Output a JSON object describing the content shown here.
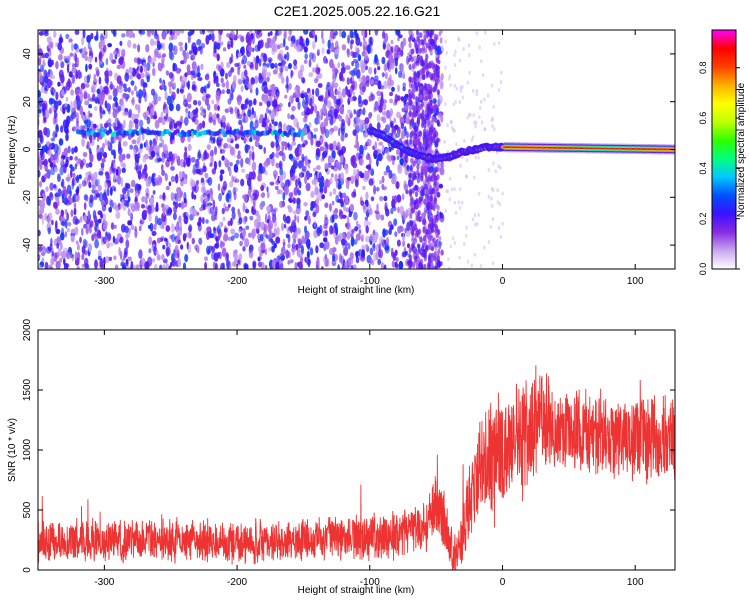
{
  "title": "C2E1.2025.005.22.16.G21",
  "colors": {
    "snr_line": "#ee3333",
    "axis": "#000000",
    "background": "#ffffff",
    "colormap": [
      "#ffffff",
      "#c8a8f0",
      "#8a2be2",
      "#3a10ff",
      "#0050ff",
      "#00c8ff",
      "#00ff80",
      "#30ff00",
      "#c0ff00",
      "#ffff00",
      "#ffb000",
      "#ff4000",
      "#ff0000",
      "#ff00ff"
    ]
  },
  "chart_data": [
    {
      "type": "heatmap",
      "xlabel": "Height of straight line (km)",
      "ylabel": "Frequency (Hz)",
      "xlim": [
        -350,
        130
      ],
      "ylim": [
        -50,
        50
      ],
      "xticks": [
        -300,
        -200,
        -100,
        0,
        100
      ],
      "yticks": [
        -40,
        -20,
        0,
        20,
        40
      ],
      "colorbar": {
        "label": "Normalized spectral amplitude",
        "range": [
          0,
          0.95
        ],
        "ticks": [
          0.0,
          0.2,
          0.4,
          0.6,
          0.8
        ]
      },
      "features": [
        {
          "name": "noise_region",
          "x_range": [
            -350,
            -45
          ],
          "y_range": [
            -50,
            50
          ],
          "level": 0.1
        },
        {
          "name": "dense_band",
          "x_range": [
            -70,
            -48
          ],
          "y_range": [
            -50,
            50
          ],
          "level": 0.12
        },
        {
          "name": "weak_tone",
          "x_range": [
            -320,
            -150
          ],
          "y": 7,
          "level": 0.2
        },
        {
          "name": "signal_track",
          "points": [
            [
              -100,
              8
            ],
            [
              -90,
              6
            ],
            [
              -80,
              2
            ],
            [
              -70,
              -1
            ],
            [
              -60,
              -3
            ],
            [
              -50,
              -4
            ],
            [
              -40,
              -3
            ],
            [
              -30,
              -1
            ],
            [
              -20,
              0
            ],
            [
              -10,
              1
            ],
            [
              0,
              1
            ],
            [
              130,
              0
            ]
          ],
          "level": 0.9
        }
      ]
    },
    {
      "type": "line",
      "xlabel": "Height of straight line (km)",
      "ylabel": "SNR (10 * v/v)",
      "xlim": [
        -350,
        130
      ],
      "ylim": [
        0,
        2000
      ],
      "xticks": [
        -300,
        -200,
        -100,
        0,
        100
      ],
      "yticks": [
        0,
        500,
        1000,
        1500,
        2000
      ],
      "series": [
        {
          "x": [
            -350,
            -300,
            -250,
            -200,
            -150,
            -100,
            -80,
            -60,
            -55,
            -50,
            -45,
            -40,
            -35,
            -30,
            -25,
            -20,
            -15,
            -10,
            -5,
            0,
            10,
            20,
            30,
            40,
            60,
            80,
            100,
            130
          ],
          "mean": [
            240,
            250,
            240,
            230,
            250,
            270,
            300,
            360,
            420,
            600,
            450,
            200,
            120,
            300,
            550,
            750,
            850,
            900,
            950,
            1000,
            1050,
            1150,
            1250,
            1200,
            1150,
            1100,
            1100,
            1100
          ],
          "spread": [
            200,
            200,
            200,
            200,
            200,
            220,
            240,
            260,
            280,
            320,
            300,
            220,
            200,
            300,
            400,
            480,
            550,
            600,
            650,
            600,
            550,
            550,
            450,
            400,
            400,
            400,
            400,
            400
          ]
        }
      ]
    }
  ]
}
